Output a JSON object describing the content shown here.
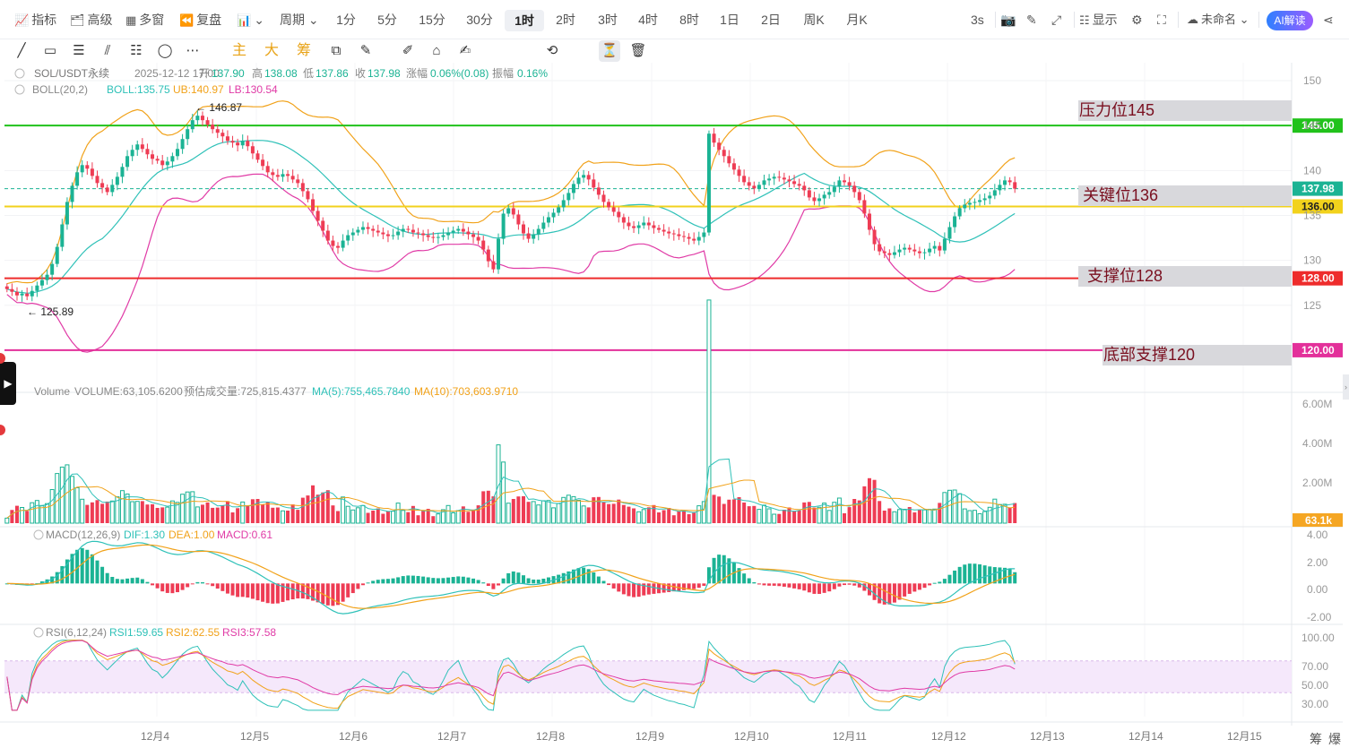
{
  "toolbar": {
    "items": [
      {
        "id": "indicators",
        "icon": "📈",
        "label": "指标"
      },
      {
        "id": "advanced",
        "icon": "🗂",
        "label": "高级"
      },
      {
        "id": "multiwin",
        "icon": "▦",
        "label": "多窗"
      },
      {
        "id": "replay",
        "icon": "⏪",
        "label": "复盘"
      },
      {
        "id": "charttype",
        "icon": "📊",
        "label": "⌄"
      },
      {
        "id": "period",
        "icon": "",
        "label": "周期 ⌄"
      }
    ],
    "periods": [
      "1分",
      "5分",
      "15分",
      "30分",
      "1时",
      "2时",
      "3时",
      "4时",
      "8时",
      "1日",
      "2日",
      "周K",
      "月K"
    ],
    "active_period": "1时",
    "right": {
      "refresh": "3s",
      "display": "显示",
      "account": "未命名 ⌄",
      "ai": "AI解读"
    }
  },
  "drawing_tools": [
    "╱",
    "▭",
    "☰",
    "⫽",
    "☷",
    "◯",
    "⋯"
  ],
  "drawing_tools2": [
    "⧉",
    "✎",
    "✐",
    "⌂",
    "✍",
    "⟲",
    "⏳",
    "🗑"
  ],
  "chip_tools": [
    "主",
    "大",
    "筹"
  ],
  "main": {
    "header": {
      "symbol": "SOL/USDT永续",
      "datetime": "2025-12-12 17:00",
      "open_l": "开",
      "open": "137.90",
      "high_l": "高",
      "high": "138.08",
      "low_l": "低",
      "low": "137.86",
      "close_l": "收",
      "close": "137.98",
      "chg_l": "涨幅",
      "chg": "0.06%(0.08)",
      "amp_l": "振幅",
      "amp": "0.16%"
    },
    "boll": {
      "title": "BOLL(20,2)",
      "mid": "BOLL:135.75",
      "ub": "UB:140.97",
      "lb": "LB:130.54"
    },
    "axis_ticks": [
      150,
      145,
      140,
      135,
      130,
      125
    ],
    "max_label": "← 146.87",
    "min_label": "← 125.89",
    "levels": [
      {
        "name": "resistance",
        "label": "压力位145",
        "price": "145.00",
        "color": "#21c21b",
        "value": 145
      },
      {
        "name": "key",
        "label": "关键位136",
        "price": "136.00",
        "color": "#f2d21c",
        "value": 136
      },
      {
        "name": "support",
        "label": "支撑位128",
        "price": "128.00",
        "color": "#ee2c2c",
        "value": 128
      },
      {
        "name": "bottom",
        "label": "底部支撑120",
        "price": "120.00",
        "color": "#e3309a",
        "value": 120
      }
    ],
    "last_price": "137.98"
  },
  "volume": {
    "label": "Volume",
    "value": "VOLUME:63,105.6200",
    "est": "预估成交量:725,815.4377",
    "ma5": "MA(5):755,465.7840",
    "ma10": "MA(10):703,603.9710",
    "ticks": [
      "6.00M",
      "4.00M",
      "2.00M"
    ],
    "last": "63.1k"
  },
  "macd": {
    "title": "MACD(12,26,9)",
    "dif": "DIF:1.30",
    "dea": "DEA:1.00",
    "macd": "MACD:0.61",
    "ticks": [
      "4.00",
      "2.00",
      "0.00",
      "-2.00"
    ]
  },
  "rsi": {
    "title": "RSI(6,12,24)",
    "rsi1": "RSI1:59.65",
    "rsi2": "RSI2:62.55",
    "rsi3": "RSI3:57.58",
    "ticks": [
      "100.00",
      "70.00",
      "50.00",
      "30.00"
    ]
  },
  "xaxis": {
    "dates": [
      "12月4",
      "12月5",
      "12月6",
      "12月7",
      "12月8",
      "12月9",
      "12月10",
      "12月11",
      "12月12",
      "12月13",
      "12月14",
      "12月15"
    ]
  },
  "bottom_controls": [
    "筹",
    "爆"
  ],
  "colors": {
    "up": "#1bb394",
    "down": "#ee3c54",
    "mid": "#2fc1b8",
    "ub": "#f1a21a",
    "lb": "#e03ba6",
    "ma5": "#2fc1b8",
    "ma10": "#f1a21a"
  },
  "chart_data": {
    "type": "candlestick",
    "closes": [
      126.8,
      126.5,
      126.1,
      126.3,
      126.0,
      126.6,
      127.2,
      127.8,
      128.4,
      129.6,
      131.5,
      134.0,
      136.5,
      138.3,
      139.8,
      140.6,
      140.2,
      139.4,
      138.6,
      138.1,
      137.6,
      138.4,
      139.3,
      140.4,
      141.6,
      142.3,
      142.9,
      142.4,
      141.8,
      141.3,
      141.1,
      140.6,
      141.0,
      141.6,
      142.4,
      143.5,
      144.6,
      145.6,
      146.1,
      145.6,
      145.1,
      144.6,
      144.2,
      143.8,
      143.3,
      143.1,
      142.8,
      143.3,
      142.7,
      141.9,
      141.2,
      140.5,
      139.8,
      139.5,
      139.3,
      139.6,
      139.4,
      139.0,
      138.6,
      137.7,
      136.8,
      135.5,
      134.4,
      133.3,
      132.2,
      131.6,
      131.4,
      132.2,
      132.8,
      133.1,
      133.4,
      133.7,
      133.5,
      133.3,
      133.1,
      132.9,
      132.7,
      132.8,
      133.2,
      133.5,
      133.4,
      133.1,
      133.0,
      132.8,
      132.6,
      132.5,
      132.6,
      132.8,
      133.1,
      133.3,
      133.5,
      133.2,
      132.9,
      132.6,
      132.2,
      131.2,
      129.9,
      129.0,
      132.4,
      135.2,
      135.8,
      135.1,
      134.0,
      133.0,
      132.4,
      132.9,
      133.5,
      134.2,
      134.8,
      135.3,
      135.9,
      136.7,
      137.5,
      138.5,
      139.2,
      139.5,
      139.0,
      138.1,
      137.3,
      136.5,
      135.9,
      135.4,
      134.8,
      134.2,
      133.8,
      133.6,
      133.9,
      134.2,
      133.9,
      133.6,
      133.4,
      133.2,
      133.0,
      132.9,
      132.7,
      132.6,
      132.4,
      132.2,
      132.6,
      133.1,
      144.1,
      143.1,
      142.3,
      141.6,
      140.8,
      140.1,
      139.4,
      138.7,
      138.3,
      138.0,
      138.4,
      138.9,
      139.1,
      139.3,
      139.2,
      139.0,
      138.8,
      138.5,
      138.3,
      137.8,
      137.0,
      136.6,
      136.9,
      137.3,
      137.6,
      138.2,
      138.9,
      138.7,
      138.3,
      137.6,
      136.7,
      135.2,
      133.4,
      131.8,
      131.0,
      130.8,
      130.6,
      130.9,
      131.2,
      131.4,
      131.2,
      131.0,
      130.8,
      130.9,
      131.3,
      131.6,
      131.1,
      132.4,
      133.7,
      134.9,
      135.8,
      136.2,
      136.4,
      136.5,
      136.7,
      136.9,
      137.2,
      137.8,
      138.4,
      138.9,
      138.7,
      137.98
    ],
    "date_labels": [
      "12月4",
      "12月5",
      "12月6",
      "12月7",
      "12月8",
      "12月9",
      "12月10",
      "12月11",
      "12月12",
      "12月13",
      "12月14",
      "12月15"
    ],
    "series": [
      {
        "name": "BOLL"
      },
      {
        "name": "UB"
      },
      {
        "name": "LB"
      },
      {
        "name": "MA(5)"
      },
      {
        "name": "MA(10)"
      },
      {
        "name": "DIF"
      },
      {
        "name": "DEA"
      },
      {
        "name": "RSI1"
      },
      {
        "name": "RSI2"
      },
      {
        "name": "RSI3"
      }
    ],
    "price_range": [
      117.3,
      151.2
    ],
    "volume_range": [
      0,
      6800000
    ],
    "macd_range": [
      -2.7,
      4.0
    ],
    "rsi_range": [
      0,
      100
    ],
    "rsi_band": [
      30,
      70
    ]
  }
}
